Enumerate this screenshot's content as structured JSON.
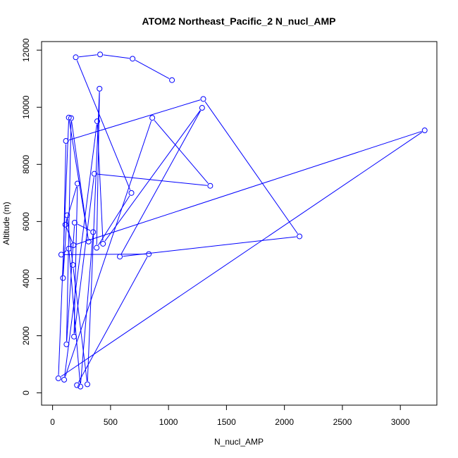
{
  "chart_data": {
    "type": "line",
    "title": "ATOM2 Northeast_Pacific_2 N_nucl_AMP",
    "xlabel": "N_nucl_AMP",
    "ylabel": "Altitude (m)",
    "xlim": [
      -95,
      3315
    ],
    "ylim": [
      -430,
      12300
    ],
    "xticks": [
      0,
      500,
      1000,
      1500,
      2000,
      2500,
      3000
    ],
    "yticks": [
      0,
      2000,
      4000,
      6000,
      8000,
      10000,
      12000
    ],
    "grid": false,
    "legend": "none",
    "series": [
      {
        "color": "#0000ff",
        "marker": "open-circle",
        "points": [
          [
            1030,
            10950
          ],
          [
            690,
            11700
          ],
          [
            410,
            11850
          ],
          [
            200,
            11750
          ],
          [
            680,
            7000
          ],
          [
            380,
            5080
          ],
          [
            405,
            10650
          ],
          [
            300,
            300
          ],
          [
            175,
            4480
          ],
          [
            125,
            6220
          ],
          [
            90,
            4020
          ],
          [
            115,
            8820
          ],
          [
            1300,
            10290
          ],
          [
            2130,
            5480
          ],
          [
            580,
            4770
          ],
          [
            1290,
            9980
          ],
          [
            435,
            5220
          ],
          [
            385,
            9510
          ],
          [
            100,
            460
          ],
          [
            860,
            9630
          ],
          [
            1360,
            7250
          ],
          [
            360,
            7670
          ],
          [
            185,
            1970
          ],
          [
            215,
            7330
          ],
          [
            110,
            5890
          ],
          [
            180,
            5170
          ],
          [
            3210,
            9190
          ],
          [
            50,
            510
          ],
          [
            140,
            9640
          ],
          [
            310,
            5300
          ],
          [
            160,
            9620
          ],
          [
            120,
            1700
          ],
          [
            190,
            5960
          ],
          [
            350,
            5630
          ],
          [
            240,
            220
          ],
          [
            140,
            5050
          ],
          [
            75,
            4840
          ],
          [
            830,
            4860
          ],
          [
            210,
            270
          ]
        ]
      }
    ]
  }
}
